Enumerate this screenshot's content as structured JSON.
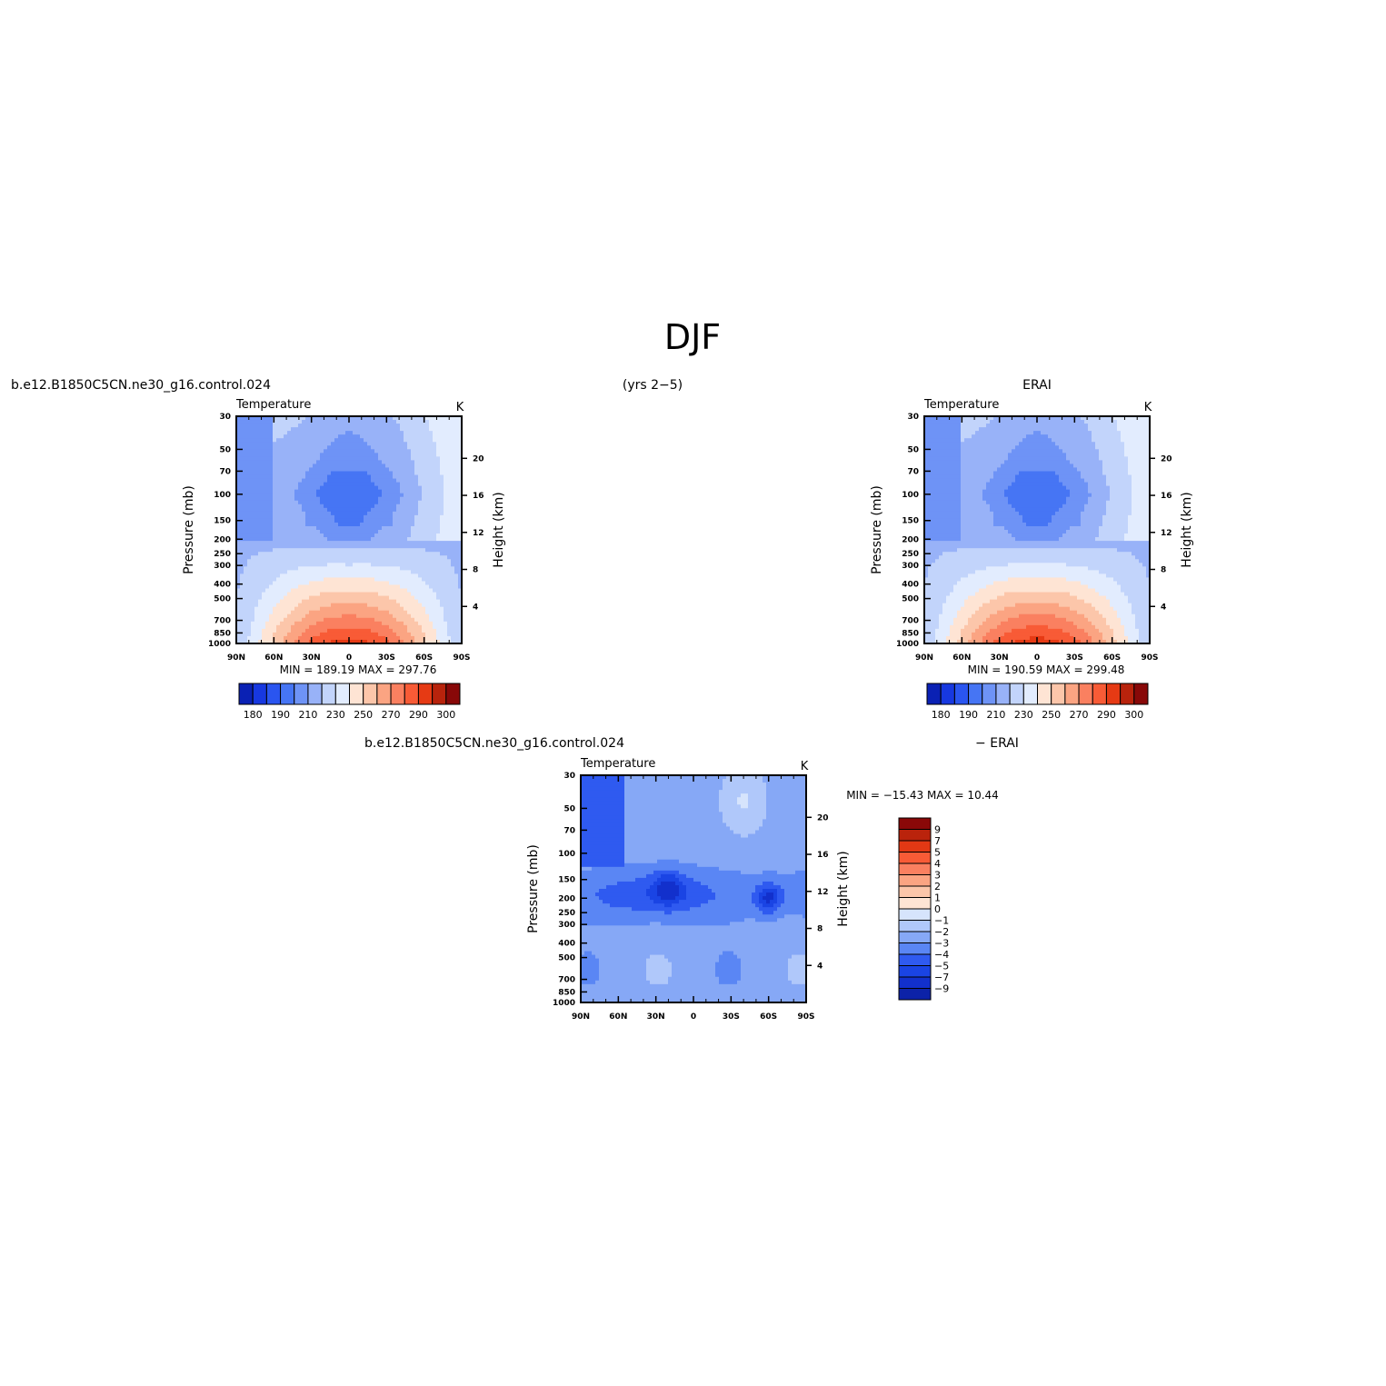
{
  "figure": {
    "title": "DJF",
    "left_title": "b.e12.B1850C5CN.ne30_g16.control.024",
    "center_title": "(yrs 2−5)",
    "right_title": "ERAI",
    "bottom_left_title": "b.e12.B1850C5CN.ne30_g16.control.024",
    "bottom_right_title": "− ERAI"
  },
  "colors": {
    "abs_scale": [
      "#08106a",
      "#0a21b4",
      "#1738e0",
      "#2a55f0",
      "#4675f4",
      "#6e93f6",
      "#98b2f8",
      "#c2d4fb",
      "#e2ecfe",
      "#fee4d4",
      "#fcc6aa",
      "#fba482",
      "#fa8060",
      "#f85b36",
      "#e63a14",
      "#b8230c",
      "#880808"
    ],
    "diff_scale": [
      "#0a1480",
      "#0c22a8",
      "#1230cc",
      "#1a44e4",
      "#2f5af0",
      "#5a86f4",
      "#86a8f6",
      "#b0c8fa",
      "#d6e4fc",
      "#fee4d4",
      "#fcc6aa",
      "#fba482",
      "#fa8060",
      "#f85b36",
      "#e23814",
      "#ba230c",
      "#8a0808"
    ]
  },
  "chart_data": [
    {
      "type": "heatmap",
      "panel": "model",
      "title": "Temperature",
      "units": "K",
      "xlabel": "",
      "ylabel": "Pressure (mb)",
      "ylabel_right": "Height (km)",
      "x_ticks": [
        "90N",
        "60N",
        "30N",
        "0",
        "30S",
        "60S",
        "90S"
      ],
      "y_ticks": [
        "30",
        "50",
        "70",
        "100",
        "150",
        "200",
        "250",
        "300",
        "400",
        "500",
        "700",
        "850",
        "1000"
      ],
      "y_ticks_right": [
        "20",
        "16",
        "12",
        "8",
        "4"
      ],
      "stats": "MIN =  189.19   MAX =  297.76",
      "colorbar_labels": [
        "180",
        "190",
        "210",
        "230",
        "250",
        "270",
        "290",
        "300"
      ],
      "levels": [
        175,
        180,
        185,
        190,
        200,
        210,
        220,
        230,
        240,
        250,
        260,
        270,
        280,
        290,
        295,
        300
      ]
    },
    {
      "type": "heatmap",
      "panel": "obs",
      "title": "Temperature",
      "units": "K",
      "xlabel": "",
      "ylabel": "Pressure (mb)",
      "ylabel_right": "Height (km)",
      "x_ticks": [
        "90N",
        "60N",
        "30N",
        "0",
        "30S",
        "60S",
        "90S"
      ],
      "y_ticks": [
        "30",
        "50",
        "70",
        "100",
        "150",
        "200",
        "250",
        "300",
        "400",
        "500",
        "700",
        "850",
        "1000"
      ],
      "y_ticks_right": [
        "20",
        "16",
        "12",
        "8",
        "4"
      ],
      "stats": "MIN =  190.59   MAX =  299.48",
      "colorbar_labels": [
        "180",
        "190",
        "210",
        "230",
        "250",
        "270",
        "290",
        "300"
      ],
      "levels": [
        175,
        180,
        185,
        190,
        200,
        210,
        220,
        230,
        240,
        250,
        260,
        270,
        280,
        290,
        295,
        300
      ]
    },
    {
      "type": "heatmap",
      "panel": "diff",
      "title": "Temperature",
      "units": "K",
      "xlabel": "",
      "ylabel": "Pressure (mb)",
      "ylabel_right": "Height (km)",
      "x_ticks": [
        "90N",
        "60N",
        "30N",
        "0",
        "30S",
        "60S",
        "90S"
      ],
      "y_ticks": [
        "30",
        "50",
        "70",
        "100",
        "150",
        "200",
        "250",
        "300",
        "400",
        "500",
        "700",
        "850",
        "1000"
      ],
      "y_ticks_right": [
        "20",
        "16",
        "12",
        "8",
        "4"
      ],
      "stats": "MIN = −15.43   MAX =   10.44",
      "colorbar_labels": [
        "9",
        "7",
        "5",
        "4",
        "3",
        "2",
        "1",
        "0",
        "−1",
        "−2",
        "−3",
        "−4",
        "−5",
        "−7",
        "−9"
      ],
      "levels": [
        -9,
        -7,
        -5,
        -4,
        -3,
        -2,
        -1,
        0,
        1,
        2,
        3,
        4,
        5,
        7,
        9
      ]
    }
  ]
}
